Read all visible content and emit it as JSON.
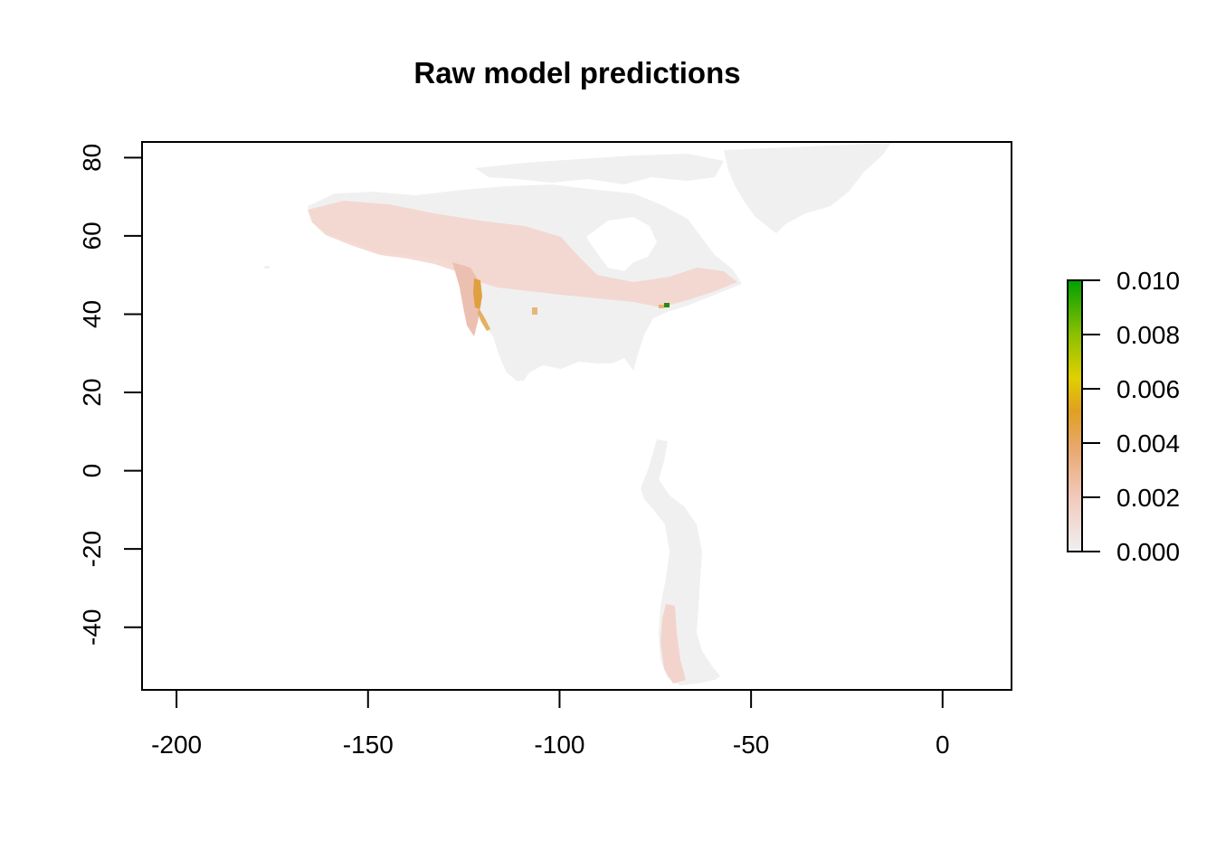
{
  "chart_data": {
    "type": "heatmap",
    "title": "Raw model predictions",
    "xlabel": "",
    "ylabel": "",
    "xlim": [
      -209,
      18
    ],
    "ylim": [
      -56,
      84
    ],
    "x_ticks": [
      -200,
      -150,
      -100,
      -50,
      0
    ],
    "x_tick_labels": [
      "-200",
      "-150",
      "-100",
      "-50",
      "0"
    ],
    "y_ticks": [
      -40,
      -20,
      0,
      20,
      40,
      60,
      80
    ],
    "y_tick_labels": [
      "-40",
      "-20",
      "0",
      "20",
      "40",
      "60",
      "80"
    ],
    "legend": {
      "placement": "right",
      "min": 0.0,
      "max": 0.01,
      "ticks": [
        0.0,
        0.002,
        0.004,
        0.006,
        0.008,
        0.01
      ],
      "tick_labels": [
        "0.000",
        "0.002",
        "0.004",
        "0.006",
        "0.008",
        "0.010"
      ],
      "colors": [
        "#f0f0f0",
        "#f2c9bd",
        "#e8a86e",
        "#e0a020",
        "#e0d000",
        "#8cc000",
        "#00a000"
      ]
    },
    "grid": false
  }
}
